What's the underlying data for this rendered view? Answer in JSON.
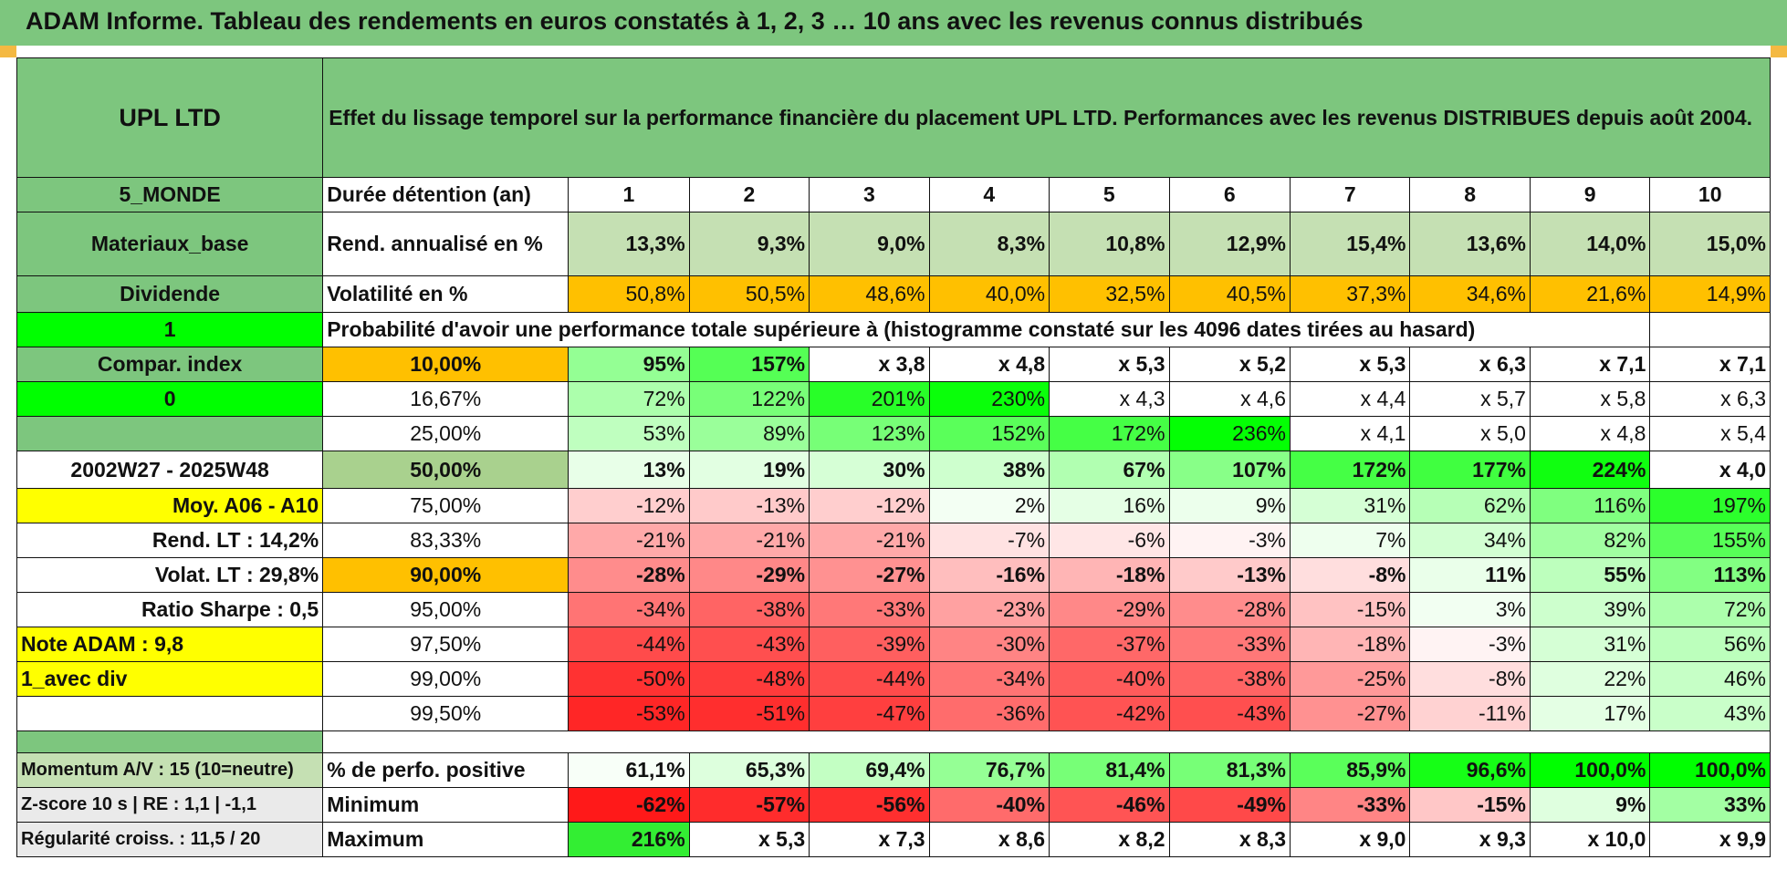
{
  "title": "ADAM Informe. Tableau des rendements en euros constatés à 1, 2, 3 … 10 ans avec les revenus connus distribués",
  "colors": {
    "header_green": "#7dc67e",
    "light_green": "#c5e0b3",
    "orange": "#ffc000",
    "bright_green": "#00ff00",
    "yellow": "#ffff00",
    "red_text": "#e00000"
  },
  "header": {
    "name": "UPL LTD",
    "description": "Effet du lissage temporel sur la performance financière du placement UPL LTD. Performances avec les revenus DISTRIBUES depuis août 2004."
  },
  "side": {
    "zone": "5_MONDE",
    "sector": "Materiaux_base",
    "type": "Dividende",
    "flag1": "1",
    "compar": "Compar. index",
    "flag0": "0",
    "period": "2002W27 - 2025W48",
    "moy": "Moy. A06 - A10",
    "rend_lt": "Rend. LT :   14,2%",
    "volat_lt": "Volat. LT :   29,8%",
    "sharpe": "Ratio Sharpe :    0,5",
    "note": "Note ADAM : 9,8",
    "div": "1_avec div"
  },
  "labels": {
    "duree": "Durée détention (an)",
    "rend": "Rend. annualisé en %",
    "vol": "Volatilité en %",
    "prob": "Probabilité d'avoir une performance totale supérieure à (histogramme constaté sur les 4096 dates tirées au hasard)"
  },
  "years": [
    "1",
    "2",
    "3",
    "4",
    "5",
    "6",
    "7",
    "8",
    "9",
    "10"
  ],
  "rend": [
    "13,3%",
    "9,3%",
    "9,0%",
    "8,3%",
    "10,8%",
    "12,9%",
    "15,4%",
    "13,6%",
    "14,0%",
    "15,0%"
  ],
  "vol": [
    "50,8%",
    "50,5%",
    "48,6%",
    "40,0%",
    "32,5%",
    "40,5%",
    "37,3%",
    "34,6%",
    "21,6%",
    "14,9%"
  ],
  "prob_rows": [
    {
      "p": "10,00%",
      "v": [
        "95%",
        "157%",
        "x 3,8",
        "x 4,8",
        "x 5,3",
        "x 5,2",
        "x 5,3",
        "x 6,3",
        "x 7,1",
        "x 7,1"
      ]
    },
    {
      "p": "16,67%",
      "v": [
        "72%",
        "122%",
        "201%",
        "230%",
        "x 4,3",
        "x 4,6",
        "x 4,4",
        "x 5,7",
        "x 5,8",
        "x 6,3"
      ]
    },
    {
      "p": "25,00%",
      "v": [
        "53%",
        "89%",
        "123%",
        "152%",
        "172%",
        "236%",
        "x 4,1",
        "x 5,0",
        "x 4,8",
        "x 5,4"
      ]
    },
    {
      "p": "50,00%",
      "v": [
        "13%",
        "19%",
        "30%",
        "38%",
        "67%",
        "107%",
        "172%",
        "177%",
        "224%",
        "x 4,0"
      ]
    },
    {
      "p": "75,00%",
      "v": [
        "-12%",
        "-13%",
        "-12%",
        "2%",
        "16%",
        "9%",
        "31%",
        "62%",
        "116%",
        "197%"
      ]
    },
    {
      "p": "83,33%",
      "v": [
        "-21%",
        "-21%",
        "-21%",
        "-7%",
        "-6%",
        "-3%",
        "7%",
        "34%",
        "82%",
        "155%"
      ]
    },
    {
      "p": "90,00%",
      "v": [
        "-28%",
        "-29%",
        "-27%",
        "-16%",
        "-18%",
        "-13%",
        "-8%",
        "11%",
        "55%",
        "113%"
      ]
    },
    {
      "p": "95,00%",
      "v": [
        "-34%",
        "-38%",
        "-33%",
        "-23%",
        "-29%",
        "-28%",
        "-15%",
        "3%",
        "39%",
        "72%"
      ]
    },
    {
      "p": "97,50%",
      "v": [
        "-44%",
        "-43%",
        "-39%",
        "-30%",
        "-37%",
        "-33%",
        "-18%",
        "-3%",
        "31%",
        "56%"
      ]
    },
    {
      "p": "99,00%",
      "v": [
        "-50%",
        "-48%",
        "-44%",
        "-34%",
        "-40%",
        "-38%",
        "-25%",
        "-8%",
        "22%",
        "46%"
      ]
    },
    {
      "p": "99,50%",
      "v": [
        "-53%",
        "-51%",
        "-47%",
        "-36%",
        "-42%",
        "-43%",
        "-27%",
        "-11%",
        "17%",
        "43%"
      ]
    }
  ],
  "bottom": [
    {
      "left": "Momentum A/V : 15 (10=neutre)",
      "label": "% de perfo. positive",
      "v": [
        "61,1%",
        "65,3%",
        "69,4%",
        "76,7%",
        "81,4%",
        "81,3%",
        "85,9%",
        "96,6%",
        "100,0%",
        "100,0%"
      ]
    },
    {
      "left": "Z-score 10 s | RE : 1,1 | -1,1",
      "label": "Minimum",
      "v": [
        "-62%",
        "-57%",
        "-56%",
        "-40%",
        "-46%",
        "-49%",
        "-33%",
        "-15%",
        "9%",
        "33%"
      ]
    },
    {
      "left": "Régularité croiss. : 11,5 / 20",
      "label": "Maximum",
      "v": [
        "216%",
        "x 5,3",
        "x 7,3",
        "x 8,6",
        "x 8,2",
        "x 8,3",
        "x 9,0",
        "x 9,3",
        "x 10,0",
        "x 9,9"
      ]
    }
  ]
}
